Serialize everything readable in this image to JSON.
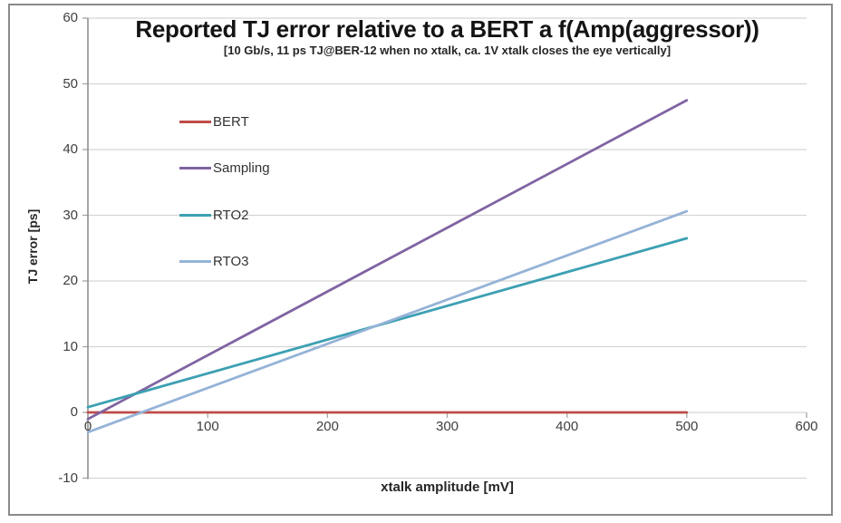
{
  "chart_data": {
    "type": "line",
    "title": "Reported TJ error relative to a BERT a f(Amp(aggressor))",
    "subtitle": "[10 Gb/s, 11 ps TJ@BER-12 when no xtalk, ca. 1V xtalk closes the eye vertically]",
    "xlabel": "xtalk amplitude [mV]",
    "ylabel": "TJ error [ps]",
    "xlim": [
      0,
      600
    ],
    "ylim": [
      -10,
      60
    ],
    "x_ticks": [
      0,
      100,
      200,
      300,
      400,
      500,
      600
    ],
    "y_ticks": [
      -10,
      0,
      10,
      20,
      30,
      40,
      50,
      60
    ],
    "grid": "horizontal",
    "legend_position": "inside-top-left",
    "series": [
      {
        "name": "BERT",
        "color": "#be4c48",
        "x": [
          0,
          500
        ],
        "y": [
          0,
          0
        ]
      },
      {
        "name": "Sampling",
        "color": "#8064a2",
        "x": [
          0,
          500
        ],
        "y": [
          -1,
          47.5
        ]
      },
      {
        "name": "RTO2",
        "color": "#3ca0b2",
        "x": [
          0,
          500
        ],
        "y": [
          0.8,
          26.5
        ]
      },
      {
        "name": "RTO3",
        "color": "#95b3d7",
        "x": [
          0,
          500
        ],
        "y": [
          -3,
          30.6
        ]
      }
    ]
  },
  "colors": {
    "gridline": "#d5d5d5",
    "axis_line": "#898989",
    "tick_mark": "#a6a6a6",
    "tick_label": "#3f3f3f",
    "frame_border": "#8a8a8a"
  }
}
